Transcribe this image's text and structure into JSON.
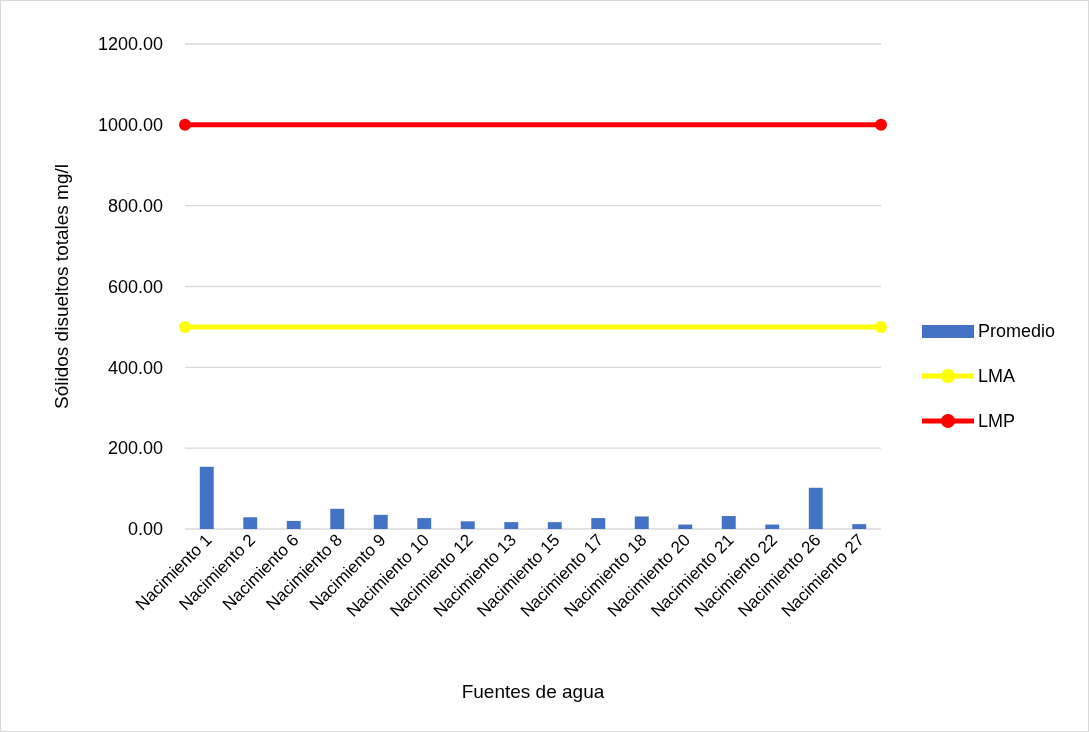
{
  "chart_data": {
    "type": "bar",
    "xlabel": "Fuentes de agua",
    "ylabel": "Sólidos disueltos totales mg/l",
    "categories": [
      "Nacimiento 1",
      "Nacimiento 2",
      "Nacimiento 6",
      "Nacimiento 8",
      "Nacimiento 9",
      "Nacimiento 10",
      "Nacimiento 12",
      "Nacimiento 13",
      "Nacimiento 15",
      "Nacimiento 17",
      "Nacimiento 18",
      "Nacimiento 20",
      "Nacimiento 21",
      "Nacimiento 22",
      "Nacimiento 26",
      "Nacimiento 27"
    ],
    "series": [
      {
        "name": "Promedio",
        "color": "#4472c4",
        "values": [
          154,
          29,
          20,
          50,
          35,
          27,
          19,
          17,
          17,
          27,
          31,
          11,
          32,
          11,
          102,
          12
        ]
      }
    ],
    "ref_lines": [
      {
        "axis": "y",
        "value": 500,
        "label": "LMA",
        "color": "#ffff00"
      },
      {
        "axis": "y",
        "value": 1000,
        "label": "LMP",
        "color": "#ff0000"
      }
    ],
    "ylim": [
      0,
      1200
    ],
    "yticks": [
      {
        "value": 0,
        "label": "0.00"
      },
      {
        "value": 200,
        "label": "200.00"
      },
      {
        "value": 400,
        "label": "400.00"
      },
      {
        "value": 600,
        "label": "600.00"
      },
      {
        "value": 800,
        "label": "800.00"
      },
      {
        "value": 1000,
        "label": "1000.00"
      },
      {
        "value": 1200,
        "label": "1200.00"
      }
    ],
    "grid": "y",
    "marker": "circle",
    "legend": "right"
  }
}
